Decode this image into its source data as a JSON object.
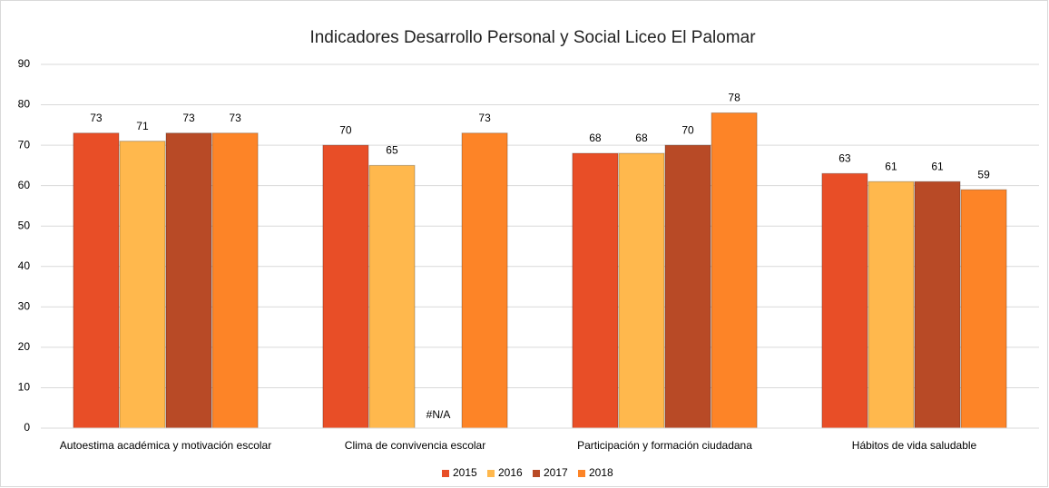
{
  "chart_data": {
    "type": "bar",
    "title": "Indicadores Desarrollo Personal y Social  Liceo El Palomar",
    "categories": [
      "Autoestima académica y motivación escolar",
      "Clima de convivencia escolar",
      "Participación y formación ciudadana",
      "Hábitos de vida saludable"
    ],
    "series": [
      {
        "name": "2015",
        "color": "#e84e27",
        "values": [
          73,
          70,
          68,
          63
        ]
      },
      {
        "name": "2016",
        "color": "#ffb84d",
        "values": [
          71,
          65,
          68,
          61
        ]
      },
      {
        "name": "2017",
        "color": "#b84a26",
        "values": [
          73,
          null,
          70,
          61
        ],
        "value_labels": [
          "73",
          "#N/A",
          "70",
          "61"
        ]
      },
      {
        "name": "2018",
        "color": "#fd8427",
        "values": [
          73,
          73,
          78,
          59
        ]
      }
    ],
    "ylim": [
      0,
      90
    ],
    "yticks": [
      0,
      10,
      20,
      30,
      40,
      50,
      60,
      70,
      80,
      90
    ],
    "grid": true,
    "legend": "bottom"
  }
}
